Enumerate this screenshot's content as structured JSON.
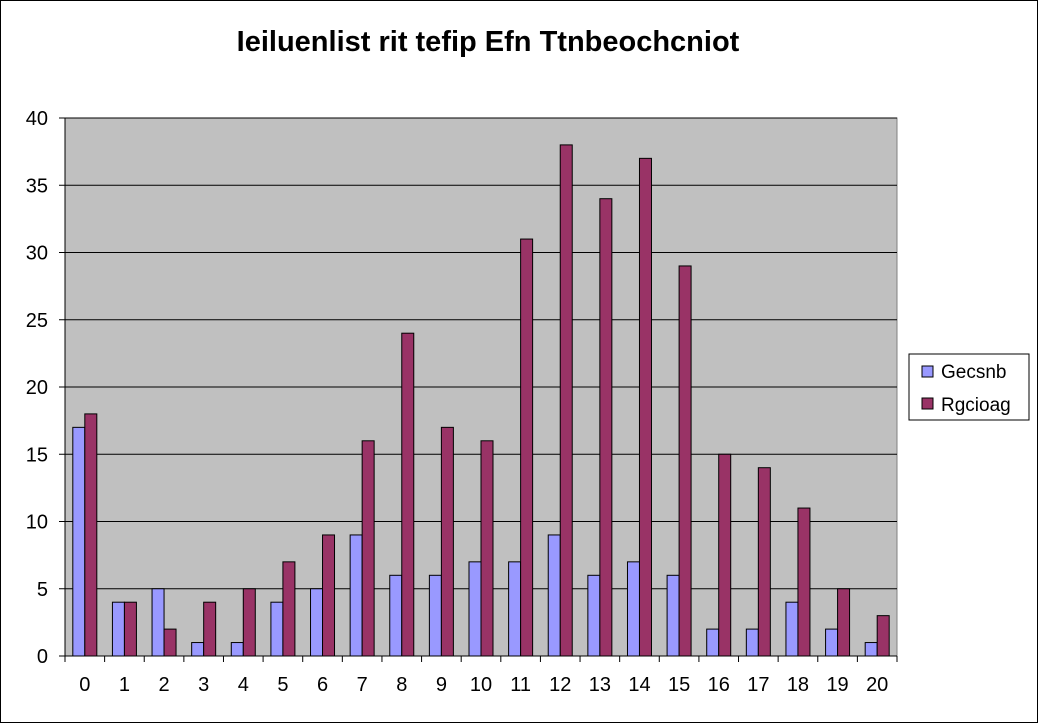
{
  "chart_data": {
    "type": "bar",
    "title": "Ieiluenlist rit tefip Efn Ttnbeochcniot",
    "xlabel": "",
    "ylabel": "",
    "categories": [
      "0",
      "1",
      "2",
      "3",
      "4",
      "5",
      "6",
      "7",
      "8",
      "9",
      "10",
      "11",
      "12",
      "13",
      "14",
      "15",
      "16",
      "17",
      "18",
      "19",
      "20"
    ],
    "series": [
      {
        "name": "Gecsnb",
        "color": "#9999ff",
        "values": [
          17,
          4,
          5,
          1,
          1,
          4,
          5,
          9,
          6,
          6,
          7,
          7,
          9,
          6,
          7,
          6,
          2,
          2,
          4,
          2,
          1
        ]
      },
      {
        "name": "Rgcioag",
        "color": "#993366",
        "values": [
          18,
          4,
          2,
          4,
          5,
          7,
          9,
          16,
          24,
          17,
          16,
          31,
          38,
          34,
          37,
          29,
          15,
          14,
          11,
          5,
          3
        ]
      }
    ],
    "ylim": [
      0,
      40
    ],
    "yticks": [
      0,
      5,
      10,
      15,
      20,
      25,
      30,
      35,
      40
    ],
    "grid": true,
    "legend": "right",
    "plot_background": "#c0c0c0"
  }
}
